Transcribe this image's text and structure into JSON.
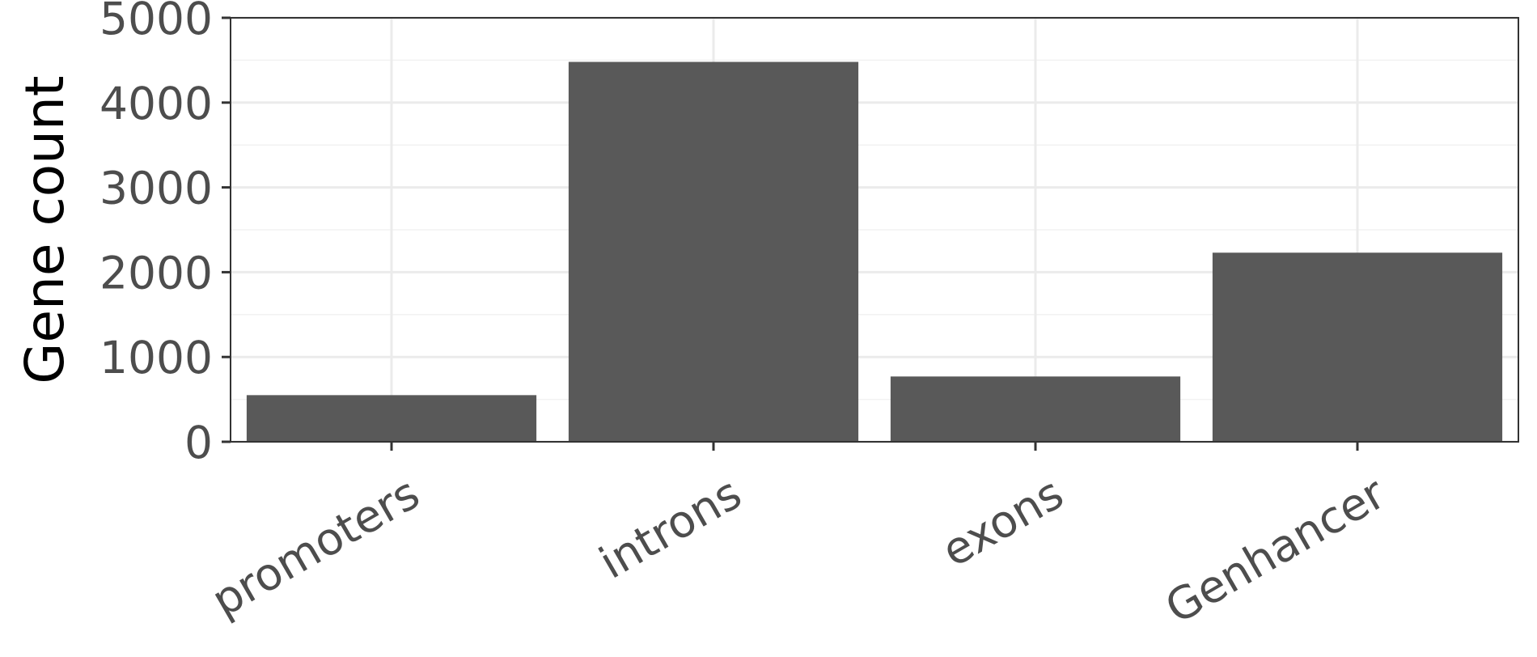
{
  "chart_data": {
    "type": "bar",
    "title": "",
    "xlabel": "",
    "ylabel": "Gene count",
    "categories": [
      "promoters",
      "introns",
      "exons",
      "Genhancer"
    ],
    "values": [
      550,
      4480,
      770,
      2230
    ],
    "ylim": [
      0,
      5000
    ],
    "yticks": [
      0,
      1000,
      2000,
      3000,
      4000,
      5000
    ],
    "yticks_labels": [
      "0",
      "1000",
      "2000",
      "3000",
      "4000",
      "5000"
    ],
    "grid": true,
    "legend": "none",
    "colors": {
      "bar": "#595959",
      "panel_border": "#333333",
      "grid_major": "#ebebeb",
      "grid_minor": "#f2f2f2",
      "tick_label": "#4d4d4d",
      "axis_title": "#000000"
    }
  }
}
